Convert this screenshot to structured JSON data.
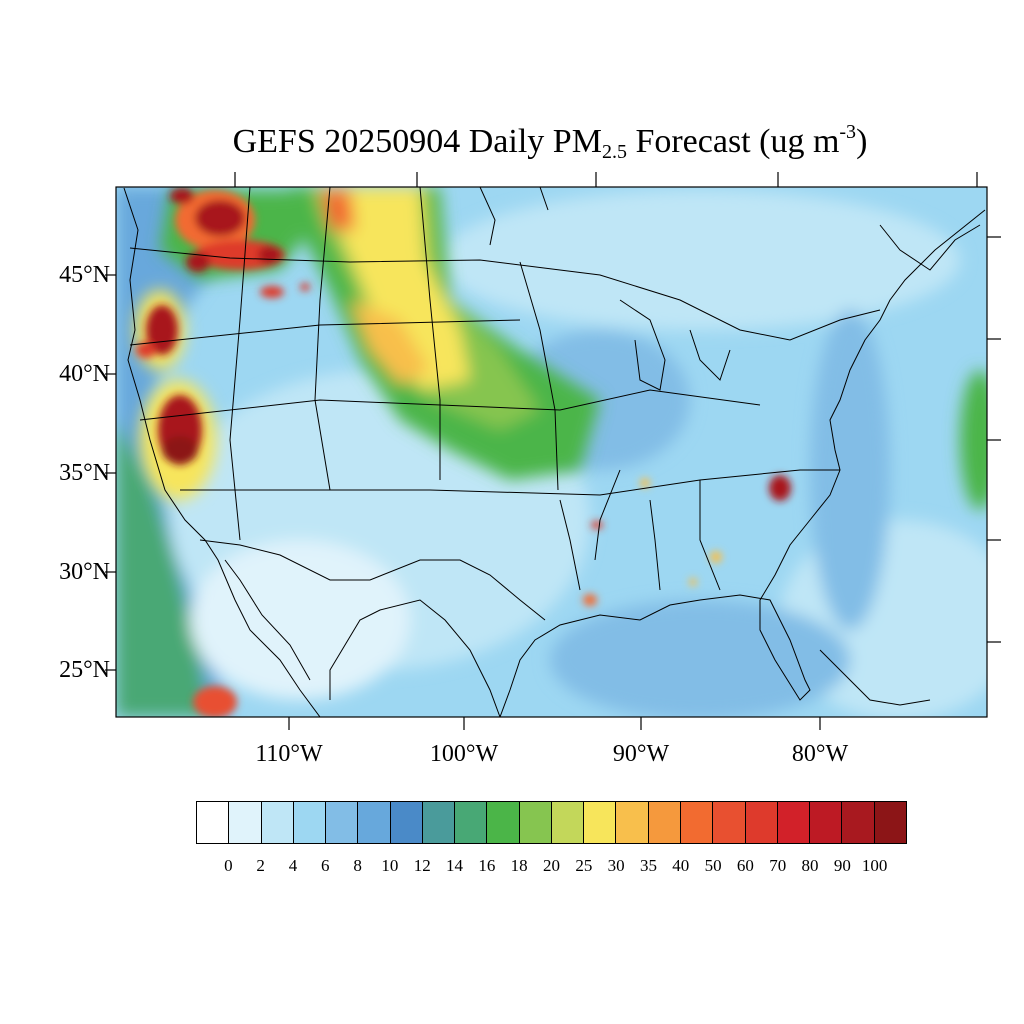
{
  "title": {
    "main": "GEFS 20250904 Daily PM",
    "subscript": "2.5",
    "rest": " Forecast (ug m",
    "superscript": "-3",
    "close": ")"
  },
  "map": {
    "lat_labels": [
      "45°N",
      "40°N",
      "35°N",
      "30°N",
      "25°N"
    ],
    "lon_labels": [
      "110°W",
      "100°W",
      "90°W",
      "80°W"
    ]
  },
  "colorbar": {
    "labels": [
      "0",
      "2",
      "4",
      "6",
      "8",
      "10",
      "12",
      "14",
      "16",
      "18",
      "20",
      "25",
      "30",
      "35",
      "40",
      "50",
      "60",
      "70",
      "80",
      "90",
      "100"
    ],
    "colors": [
      "#ffffff",
      "#e0f3fb",
      "#bfe6f6",
      "#9dd7f2",
      "#82bde6",
      "#67a8dc",
      "#4a8ac8",
      "#4a9b9b",
      "#48a875",
      "#4bb548",
      "#86c550",
      "#c3d75a",
      "#f7e55b",
      "#f8bf4c",
      "#f5993d",
      "#f26b30",
      "#e85030",
      "#de3a2c",
      "#d22129",
      "#bd1a24",
      "#a8191f",
      "#8c1517"
    ]
  }
}
